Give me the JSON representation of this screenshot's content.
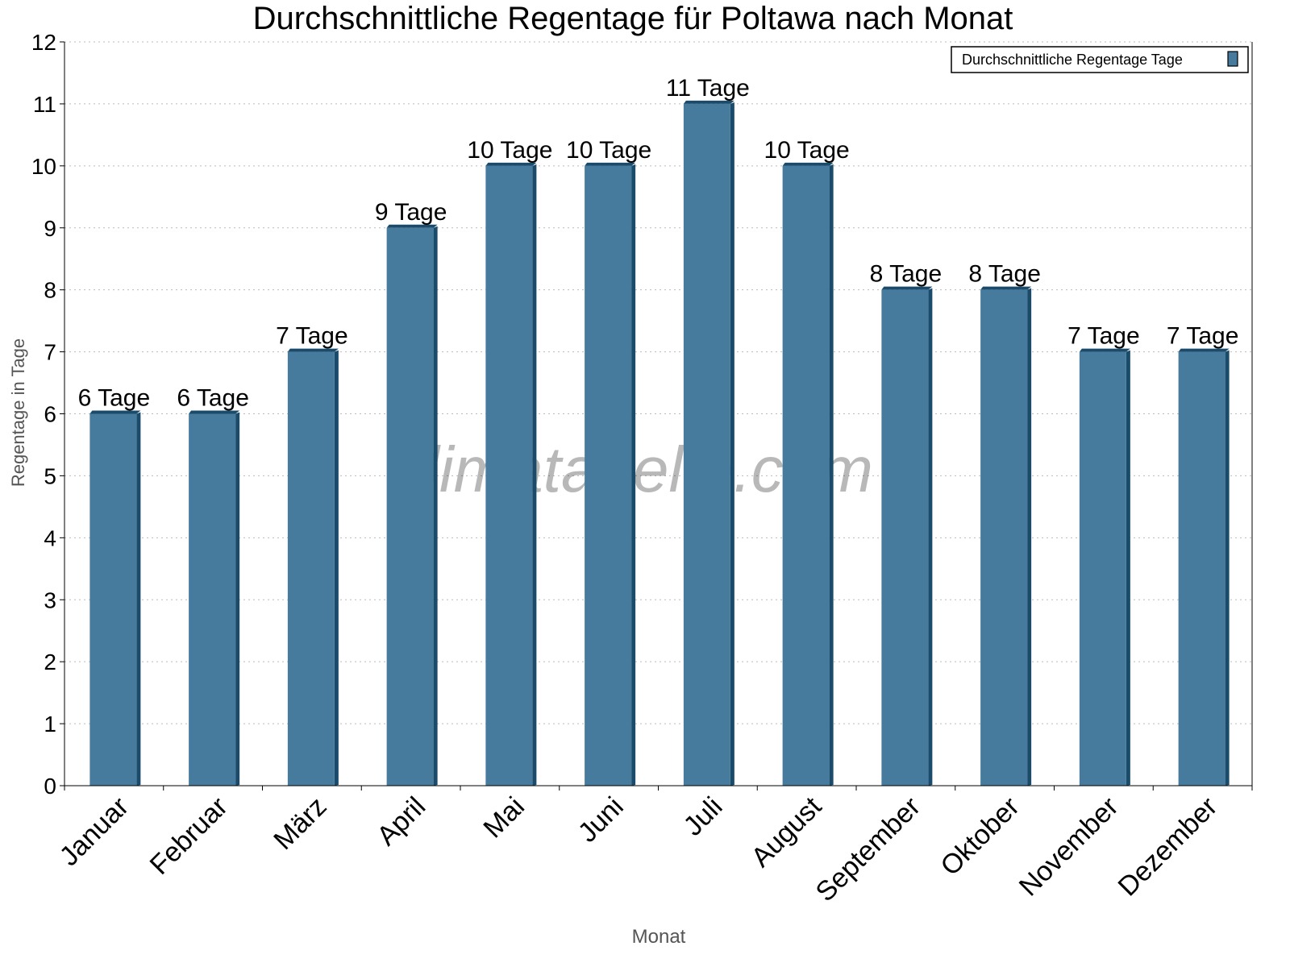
{
  "chart_data": {
    "type": "bar",
    "title": "Durchschnittliche Regentage für Poltawa nach Monat",
    "xlabel": "Monat",
    "ylabel": "Regentage in Tage",
    "categories": [
      "Januar",
      "Februar",
      "März",
      "April",
      "Mai",
      "Juni",
      "Juli",
      "August",
      "September",
      "Oktober",
      "November",
      "Dezember"
    ],
    "series": [
      {
        "name": "Durchschnittliche Regentage Tage",
        "values": [
          6,
          6,
          7,
          9,
          10,
          10,
          11,
          10,
          8,
          8,
          7,
          7
        ]
      }
    ],
    "data_labels": [
      "6 Tage",
      "6 Tage",
      "7 Tage",
      "9 Tage",
      "10 Tage",
      "10 Tage",
      "11 Tage",
      "10 Tage",
      "8 Tage",
      "8 Tage",
      "7 Tage",
      "7 Tage"
    ],
    "ylim": [
      0,
      12
    ],
    "yticks": [
      "0",
      "1",
      "2",
      "3",
      "4",
      "5",
      "6",
      "7",
      "8",
      "9",
      "10",
      "11",
      "12"
    ],
    "grid": true,
    "legend_position": "top-right",
    "colors": {
      "bar": "#467b9d",
      "bar_side": "#1a4b6b"
    },
    "watermark": "klimatabelle.com"
  }
}
